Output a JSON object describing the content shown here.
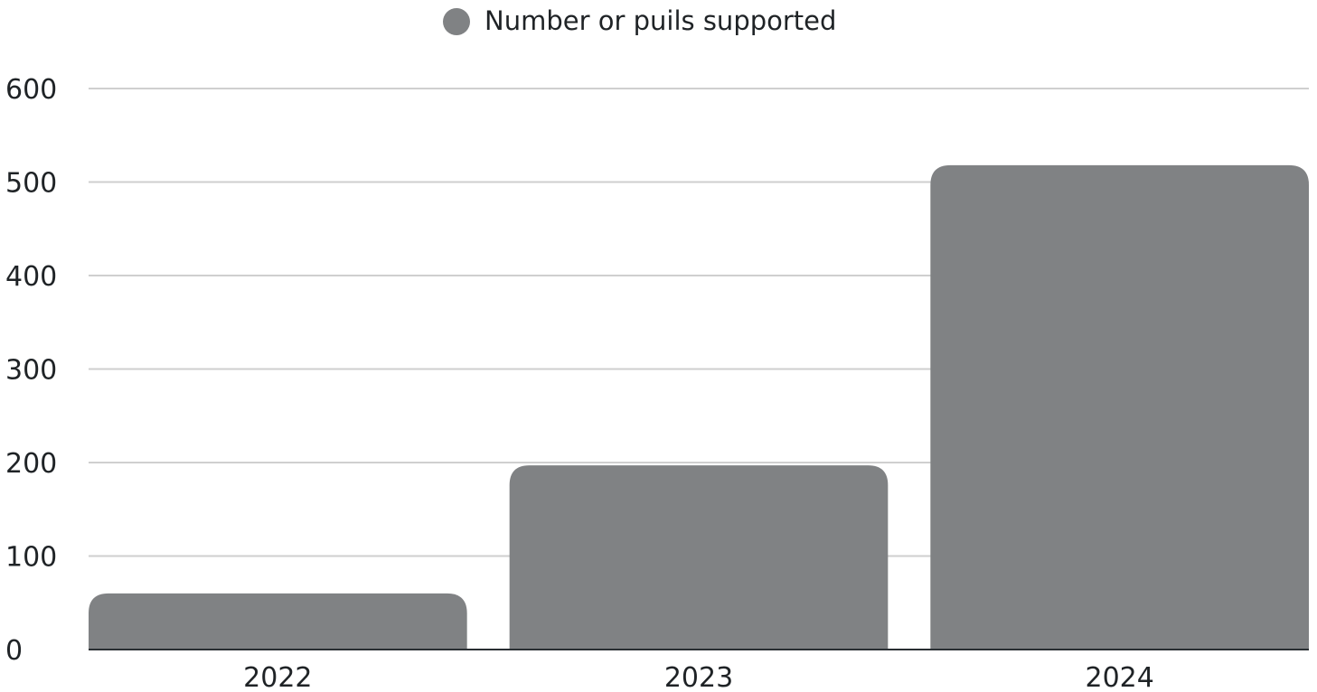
{
  "chart_data": {
    "type": "bar",
    "categories": [
      "2022",
      "2023",
      "2024"
    ],
    "series": [
      {
        "name": "Number or puils supported",
        "values": [
          60,
          197,
          518
        ],
        "color": "#808284"
      }
    ],
    "ylim": [
      0,
      600
    ],
    "yticks": [
      0,
      100,
      200,
      300,
      400,
      500,
      600
    ],
    "grid": true,
    "grid_color": "#cfcfcf",
    "baseline_color": "#2a2f33",
    "text_color": "#1f2326",
    "legend_position": "top-center",
    "title": "",
    "xlabel": "",
    "ylabel": ""
  }
}
